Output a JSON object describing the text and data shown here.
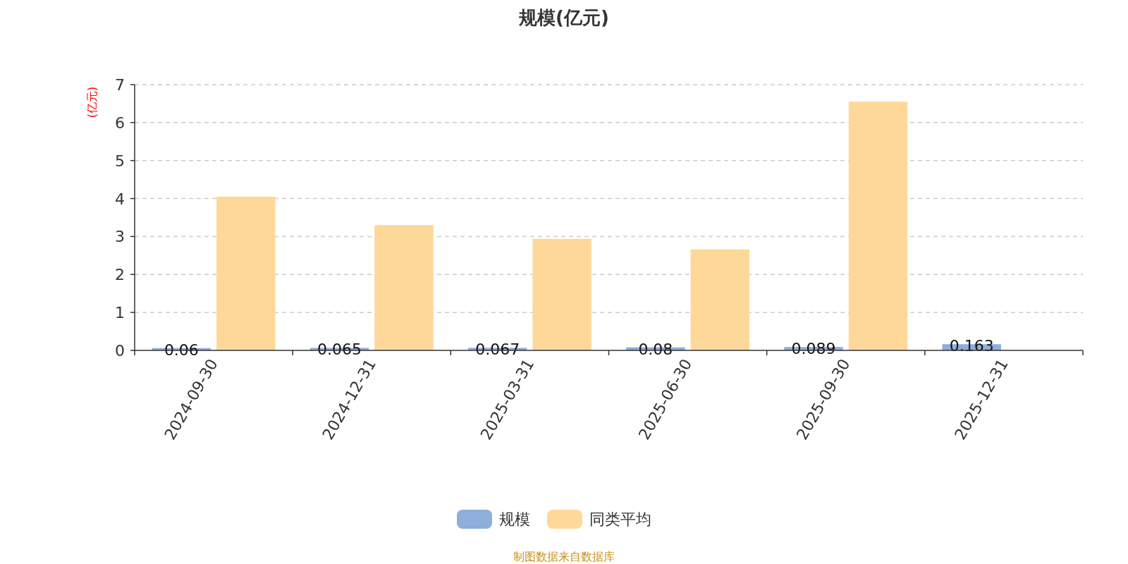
{
  "chart_data": {
    "type": "bar",
    "title": "规模(亿元)",
    "ylabel": "(亿元)",
    "annotations": [
      "制图数据来自数据库"
    ],
    "categories": [
      "2024-09-30",
      "2024-12-31",
      "2025-03-31",
      "2025-06-30",
      "2025-09-30",
      "2025-12-31"
    ],
    "series": [
      {
        "name": "规模",
        "color": "#8eaedb",
        "values": [
          0.06,
          0.065,
          0.067,
          0.08,
          0.089,
          0.163
        ],
        "value_labels": [
          "0.06",
          "0.065",
          "0.067",
          "0.08",
          "0.089",
          "0.163"
        ]
      },
      {
        "name": "同类平均",
        "color": "#fed899",
        "values": [
          4.05,
          3.3,
          2.94,
          2.66,
          6.55,
          null
        ]
      }
    ],
    "ylim": [
      0,
      7
    ],
    "yticks": [
      0,
      1,
      2,
      3,
      4,
      5,
      6,
      7
    ],
    "grid": "y",
    "legend": "bottom"
  }
}
